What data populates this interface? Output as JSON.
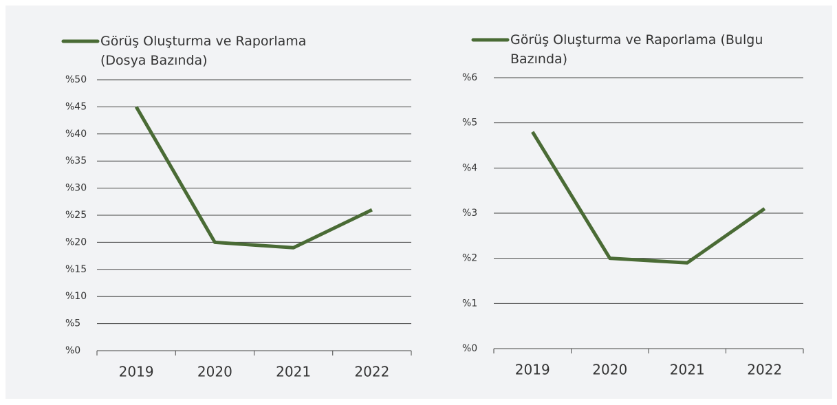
{
  "chart_data": [
    {
      "type": "line",
      "categories": [
        "2019",
        "2020",
        "2021",
        "2022"
      ],
      "series": [
        {
          "name": "Görüş Oluşturma ve Raporlama (Dosya Bazında)",
          "color": "#4a6b35",
          "values": [
            45,
            20,
            19,
            26
          ]
        }
      ],
      "ylim": [
        0,
        50
      ],
      "yticks": [
        {
          "value": 0,
          "label": "%0"
        },
        {
          "value": 5,
          "label": "%5"
        },
        {
          "value": 10,
          "label": "%10"
        },
        {
          "value": 15,
          "label": "%15"
        },
        {
          "value": 20,
          "label": "%20"
        },
        {
          "value": 25,
          "label": "%25"
        },
        {
          "value": 30,
          "label": "%30"
        },
        {
          "value": 35,
          "label": "%35"
        },
        {
          "value": 40,
          "label": "%40"
        },
        {
          "value": 45,
          "label": "%45"
        },
        {
          "value": 50,
          "label": "%50"
        }
      ],
      "grid": true,
      "legend": "top"
    },
    {
      "type": "line",
      "categories": [
        "2019",
        "2020",
        "2021",
        "2022"
      ],
      "series": [
        {
          "name": "Görüş Oluşturma ve Raporlama (Bulgu Bazında)",
          "color": "#4a6b35",
          "values": [
            4.8,
            2.0,
            1.9,
            3.1
          ]
        }
      ],
      "ylim": [
        0,
        6
      ],
      "yticks": [
        {
          "value": 0,
          "label": "%0"
        },
        {
          "value": 1,
          "label": "%1"
        },
        {
          "value": 2,
          "label": "%2"
        },
        {
          "value": 3,
          "label": "%3"
        },
        {
          "value": 4,
          "label": "%4"
        },
        {
          "value": 5,
          "label": "%5"
        },
        {
          "value": 6,
          "label": "%6"
        }
      ],
      "grid": true,
      "legend": "top"
    }
  ]
}
